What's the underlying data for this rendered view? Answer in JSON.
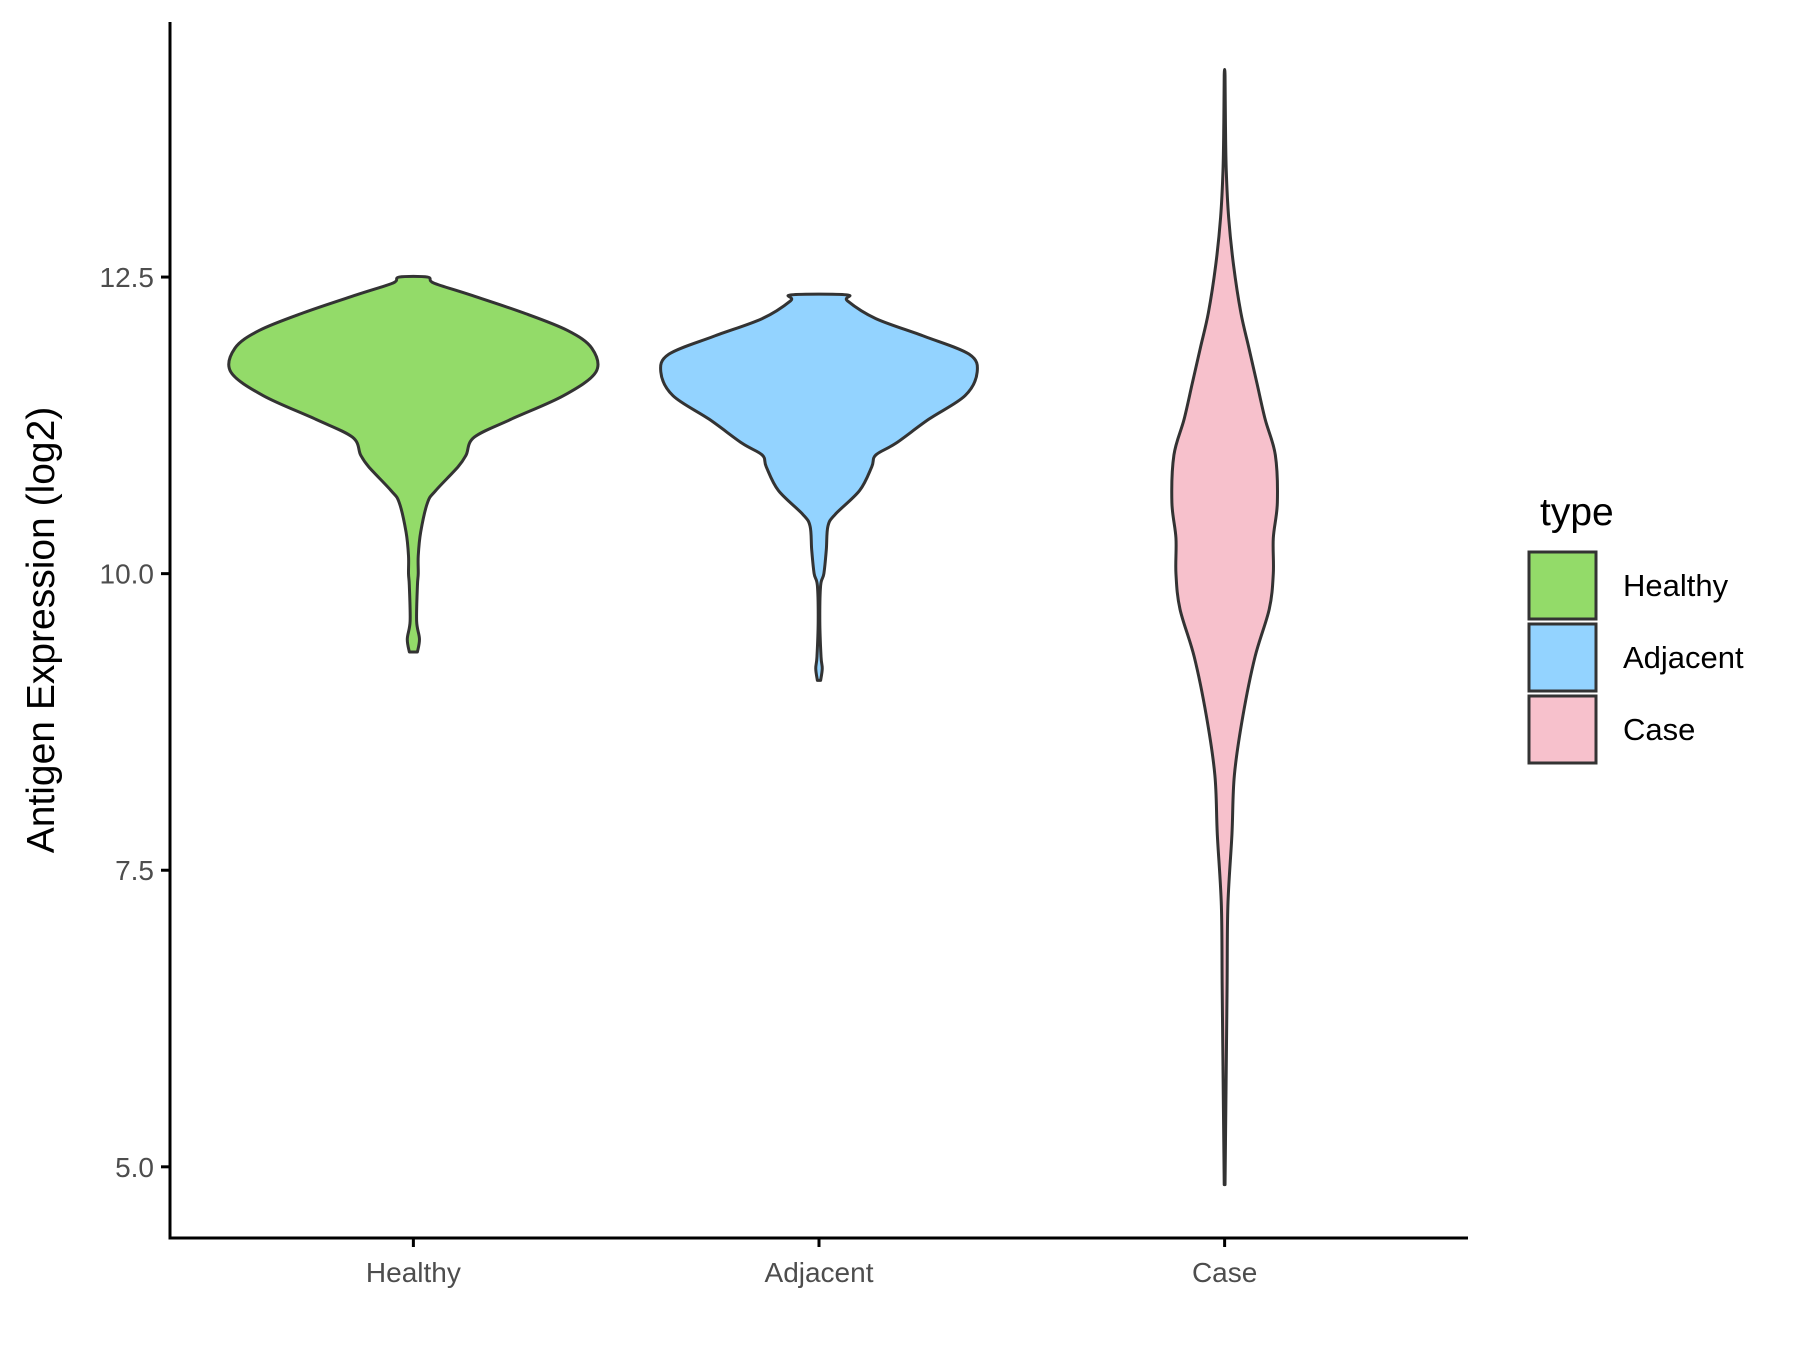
{
  "chart_data": {
    "type": "violin",
    "ylabel": "Antigen Expression (log2)",
    "xlabel": "",
    "categories": [
      "Healthy",
      "Adjacent",
      "Case"
    ],
    "ylim": [
      4.4,
      14.65
    ],
    "yticks": [
      5.0,
      7.5,
      10.0,
      12.5
    ],
    "ytick_labels": [
      "5.0",
      "7.5",
      "10.0",
      "12.5"
    ],
    "grid": false,
    "legend": {
      "title": "type",
      "placement": "right",
      "entries": [
        "Healthy",
        "Adjacent",
        "Case"
      ]
    },
    "colors": {
      "Healthy": "#93DB69",
      "Adjacent": "#93D3FF",
      "Case": "#F7C1CC",
      "outline": "#333333",
      "axis": "#000000"
    },
    "series": [
      {
        "name": "Healthy",
        "min": 9.34,
        "max": 12.5,
        "max_half_width": 0.45,
        "profile": [
          [
            9.34,
            0.01
          ],
          [
            9.45,
            0.015
          ],
          [
            9.6,
            0.008
          ],
          [
            9.9,
            0.01
          ],
          [
            10.0,
            0.012
          ],
          [
            10.15,
            0.012
          ],
          [
            10.35,
            0.018
          ],
          [
            10.6,
            0.035
          ],
          [
            10.7,
            0.055
          ],
          [
            10.9,
            0.11
          ],
          [
            11.0,
            0.13
          ],
          [
            11.15,
            0.15
          ],
          [
            11.3,
            0.24
          ],
          [
            11.5,
            0.37
          ],
          [
            11.7,
            0.45
          ],
          [
            11.9,
            0.44
          ],
          [
            12.05,
            0.38
          ],
          [
            12.2,
            0.27
          ],
          [
            12.35,
            0.14
          ],
          [
            12.45,
            0.05
          ],
          [
            12.5,
            0.035
          ]
        ]
      },
      {
        "name": "Adjacent",
        "min": 9.1,
        "max": 12.35,
        "max_half_width": 0.39,
        "profile": [
          [
            9.1,
            0.004
          ],
          [
            9.2,
            0.008
          ],
          [
            9.3,
            0.005
          ],
          [
            9.6,
            0.002
          ],
          [
            9.9,
            0.004
          ],
          [
            10.0,
            0.012
          ],
          [
            10.2,
            0.018
          ],
          [
            10.4,
            0.022
          ],
          [
            10.5,
            0.04
          ],
          [
            10.7,
            0.1
          ],
          [
            10.9,
            0.13
          ],
          [
            11.0,
            0.14
          ],
          [
            11.1,
            0.19
          ],
          [
            11.3,
            0.27
          ],
          [
            11.5,
            0.36
          ],
          [
            11.7,
            0.39
          ],
          [
            11.85,
            0.37
          ],
          [
            12.0,
            0.26
          ],
          [
            12.15,
            0.14
          ],
          [
            12.3,
            0.07
          ],
          [
            12.35,
            0.068
          ]
        ]
      },
      {
        "name": "Case",
        "min": 4.85,
        "max": 14.2,
        "max_half_width": 0.13,
        "profile": [
          [
            4.85,
            0.001
          ],
          [
            5.5,
            0.003
          ],
          [
            6.5,
            0.006
          ],
          [
            7.2,
            0.008
          ],
          [
            7.8,
            0.018
          ],
          [
            8.3,
            0.024
          ],
          [
            8.8,
            0.045
          ],
          [
            9.3,
            0.075
          ],
          [
            9.7,
            0.11
          ],
          [
            10.0,
            0.12
          ],
          [
            10.3,
            0.12
          ],
          [
            10.6,
            0.13
          ],
          [
            11.0,
            0.125
          ],
          [
            11.3,
            0.1
          ],
          [
            11.6,
            0.08
          ],
          [
            11.9,
            0.06
          ],
          [
            12.2,
            0.04
          ],
          [
            12.6,
            0.022
          ],
          [
            13.0,
            0.01
          ],
          [
            13.4,
            0.004
          ],
          [
            13.8,
            0.002
          ],
          [
            14.2,
            0.001
          ]
        ]
      }
    ]
  }
}
